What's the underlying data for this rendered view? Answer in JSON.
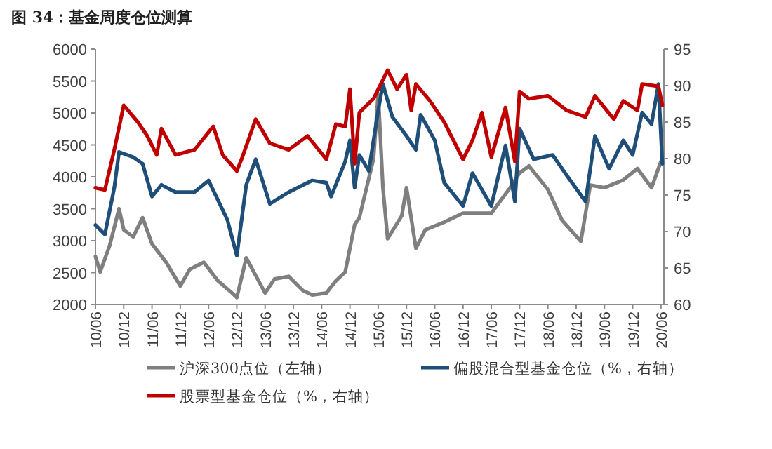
{
  "chart_data": {
    "type": "line",
    "title": "图 34：基金周度仓位测算",
    "xlim": [
      "2010-06",
      "2020-06-20"
    ],
    "xticks": [
      {
        "value": "2010-06",
        "label": "10/06"
      },
      {
        "value": "2010-12",
        "label": "10/12"
      },
      {
        "value": "2011-06",
        "label": "11/06"
      },
      {
        "value": "2011-12",
        "label": "11/12"
      },
      {
        "value": "2012-06",
        "label": "12/06"
      },
      {
        "value": "2012-12",
        "label": "12/12"
      },
      {
        "value": "2013-06",
        "label": "13/06"
      },
      {
        "value": "2013-12",
        "label": "13/12"
      },
      {
        "value": "2014-06",
        "label": "14/06"
      },
      {
        "value": "2014-12",
        "label": "14/12"
      },
      {
        "value": "2015-06",
        "label": "15/06"
      },
      {
        "value": "2015-12",
        "label": "15/12"
      },
      {
        "value": "2016-06",
        "label": "16/06"
      },
      {
        "value": "2016-12",
        "label": "16/12"
      },
      {
        "value": "2017-06",
        "label": "17/06"
      },
      {
        "value": "2017-12",
        "label": "17/12"
      },
      {
        "value": "2018-06",
        "label": "18/06"
      },
      {
        "value": "2018-12",
        "label": "18/12"
      },
      {
        "value": "2019-06",
        "label": "19/06"
      },
      {
        "value": "2019-12",
        "label": "19/12"
      },
      {
        "value": "2020-06",
        "label": "20/06"
      }
    ],
    "ylim": [
      2000,
      6000
    ],
    "yticks": [
      2000,
      2500,
      3000,
      3500,
      4000,
      4500,
      5000,
      5500,
      6000
    ],
    "y2lim": [
      60,
      95
    ],
    "y2ticks": [
      60,
      65,
      70,
      75,
      80,
      85,
      90,
      95
    ],
    "legend": "bottom",
    "series": [
      {
        "name": "沪深300点位（左轴）",
        "color": "#7f7f7f",
        "x": [
          "2010-06",
          "2010-07",
          "2010-09",
          "2010-11",
          "2010-12",
          "2011-02",
          "2011-04",
          "2011-06",
          "2011-09",
          "2011-12",
          "2012-02",
          "2012-05",
          "2012-08",
          "2012-11",
          "2012-12",
          "2013-02",
          "2013-06",
          "2013-08",
          "2013-11",
          "2014-02",
          "2014-04",
          "2014-07",
          "2014-09",
          "2014-11",
          "2015-01",
          "2015-02",
          "2015-05",
          "2015-06",
          "2015-07",
          "2015-08",
          "2015-11",
          "2015-12",
          "2016-02",
          "2016-04",
          "2016-08",
          "2016-12",
          "2017-06",
          "2017-10",
          "2017-12",
          "2018-02",
          "2018-06",
          "2018-09",
          "2019-01",
          "2019-03",
          "2019-06",
          "2019-10",
          "2020-01",
          "2020-04",
          "2020-06"
        ],
        "values": [
          2750,
          2510,
          2920,
          3500,
          3170,
          3060,
          3360,
          2950,
          2660,
          2290,
          2550,
          2660,
          2370,
          2180,
          2110,
          2730,
          2180,
          2400,
          2440,
          2220,
          2150,
          2180,
          2370,
          2510,
          3250,
          3360,
          4280,
          5300,
          3830,
          3030,
          3390,
          3830,
          2880,
          3170,
          3290,
          3430,
          3430,
          3830,
          4060,
          4170,
          3800,
          3320,
          2990,
          3870,
          3830,
          3950,
          4130,
          3830,
          4240
        ]
      },
      {
        "name": "偏股混合型基金仓位（%，右轴）",
        "color": "#1f4e79",
        "axis": "y2",
        "x": [
          "2010-06",
          "2010-08",
          "2010-10",
          "2010-11",
          "2011-02",
          "2011-04",
          "2011-06",
          "2011-08",
          "2011-11",
          "2012-03",
          "2012-06",
          "2012-10",
          "2012-12",
          "2013-02",
          "2013-04",
          "2013-07",
          "2013-11",
          "2014-04",
          "2014-07",
          "2014-08",
          "2014-11",
          "2014-12",
          "2015-01",
          "2015-02",
          "2015-04",
          "2015-06",
          "2015-07",
          "2015-09",
          "2015-12",
          "2016-02",
          "2016-03",
          "2016-06",
          "2016-08",
          "2016-12",
          "2017-02",
          "2017-06",
          "2017-09",
          "2017-11",
          "2017-12",
          "2018-03",
          "2018-07",
          "2018-10",
          "2019-02",
          "2019-04",
          "2019-07",
          "2019-10",
          "2019-12",
          "2020-02",
          "2020-04",
          "2020-05-15",
          "2020-06-10"
        ],
        "values": [
          70.9,
          69.6,
          76.0,
          80.9,
          80.2,
          79.3,
          74.8,
          76.4,
          75.4,
          75.4,
          77.0,
          71.6,
          66.7,
          76.4,
          79.9,
          73.8,
          75.4,
          77.0,
          76.7,
          74.8,
          79.6,
          82.5,
          76.0,
          80.5,
          78.3,
          86.6,
          90.2,
          85.7,
          83.1,
          81.2,
          86.0,
          82.5,
          76.7,
          73.5,
          78.0,
          73.5,
          81.8,
          74.1,
          84.1,
          79.9,
          80.5,
          77.7,
          74.1,
          83.1,
          78.6,
          82.5,
          80.5,
          86.3,
          84.7,
          90.2,
          79.3
        ]
      },
      {
        "name": "股票型基金仓位（%，右轴）",
        "color": "#c00000",
        "axis": "y2",
        "x": [
          "2010-06",
          "2010-08",
          "2010-10",
          "2010-12",
          "2011-03",
          "2011-05",
          "2011-07",
          "2011-08",
          "2011-11",
          "2012-03",
          "2012-07",
          "2012-09",
          "2012-12",
          "2013-01",
          "2013-04",
          "2013-07",
          "2013-11",
          "2014-03",
          "2014-07",
          "2014-09",
          "2014-11",
          "2014-12",
          "2015-01",
          "2015-02",
          "2015-05",
          "2015-08",
          "2015-10",
          "2015-12",
          "2016-01",
          "2016-02",
          "2016-05",
          "2016-08",
          "2016-12",
          "2017-02",
          "2017-04",
          "2017-06",
          "2017-09",
          "2017-11",
          "2017-12",
          "2018-02",
          "2018-06",
          "2018-10",
          "2019-02",
          "2019-04",
          "2019-08",
          "2019-10",
          "2020-01",
          "2020-02",
          "2020-05-15",
          "2020-06-10"
        ],
        "values": [
          76.0,
          75.7,
          81.2,
          87.3,
          85.0,
          83.1,
          80.5,
          84.1,
          80.5,
          81.2,
          84.4,
          80.5,
          78.3,
          79.9,
          85.4,
          82.1,
          81.2,
          83.1,
          79.9,
          84.7,
          84.4,
          89.5,
          79.3,
          86.3,
          88.2,
          92.1,
          89.5,
          91.5,
          86.6,
          90.2,
          87.9,
          85.0,
          79.9,
          82.5,
          86.3,
          80.2,
          87.0,
          79.6,
          89.2,
          88.2,
          88.6,
          86.6,
          85.7,
          88.6,
          85.4,
          87.9,
          86.6,
          90.2,
          89.9,
          87.3
        ]
      }
    ]
  }
}
